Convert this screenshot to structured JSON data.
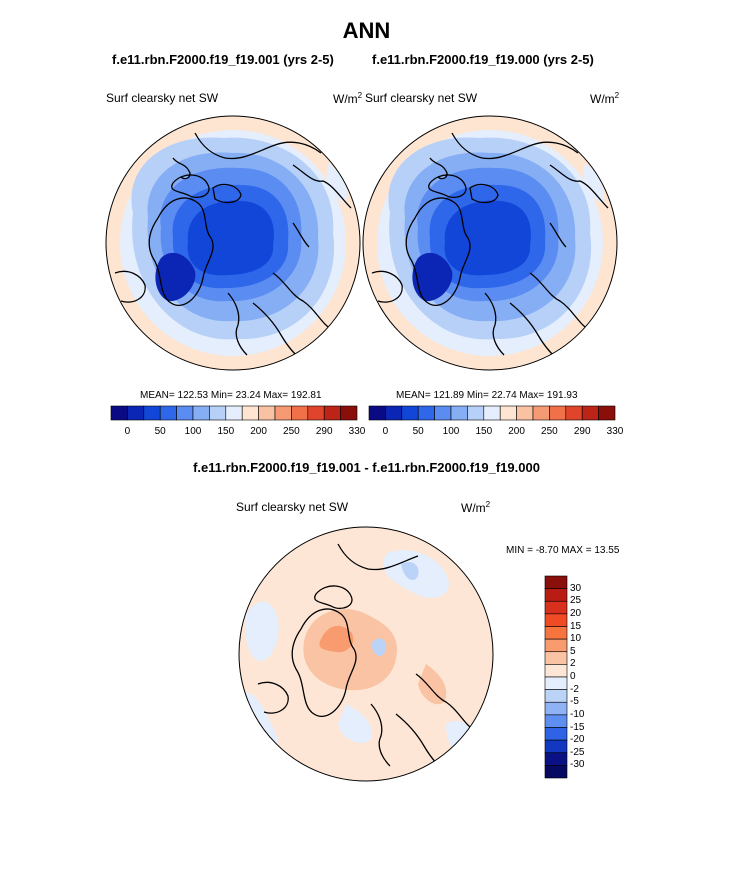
{
  "title": "ANN",
  "panels": [
    {
      "case": "f.e11.rbn.F2000.f19_f19.001 (yrs 2-5)",
      "variable": "Surf clearsky net SW",
      "units": "W/m",
      "units_exp": "2",
      "stats": "MEAN= 122.53  Min=  23.24  Max= 192.81"
    },
    {
      "case": "f.e11.rbn.F2000.f19_f19.000 (yrs 2-5)",
      "variable": "Surf clearsky net SW",
      "units": "W/m",
      "units_exp": "2",
      "stats": "MEAN= 121.89  Min=  22.74  Max= 191.93"
    }
  ],
  "colorbar_ticks": [
    "0",
    "50",
    "100",
    "150",
    "200",
    "250",
    "290",
    "330"
  ],
  "colorbar_colors": [
    "#0a0a85",
    "#0b26b4",
    "#1246d8",
    "#2f67ea",
    "#5a8cf1",
    "#86aef5",
    "#b6d0f8",
    "#e4eefc",
    "#fde5d2",
    "#f8c2a3",
    "#f59a73",
    "#f07048",
    "#e0442a",
    "#bb2417",
    "#8a0f0a"
  ],
  "diff": {
    "title": "f.e11.rbn.F2000.f19_f19.001 - f.e11.rbn.F2000.f19_f19.000",
    "variable": "Surf clearsky net SW",
    "units": "W/m",
    "units_exp": "2",
    "minmax": "MIN =  -8.70 MAX =  13.55",
    "ticks": [
      "30",
      "25",
      "20",
      "15",
      "10",
      "5",
      "2",
      "0",
      "-2",
      "-5",
      "-10",
      "-15",
      "-20",
      "-25",
      "-30"
    ],
    "colors": [
      "#8a0f0a",
      "#b81c12",
      "#d8301c",
      "#f04b24",
      "#f7743f",
      "#f89b6f",
      "#fac3a4",
      "#fde6d6",
      "#e4eefc",
      "#bcd3f8",
      "#8fb2f4",
      "#5d8ef0",
      "#2f63e6",
      "#1238c0",
      "#0a1185",
      "#060a60"
    ]
  }
}
